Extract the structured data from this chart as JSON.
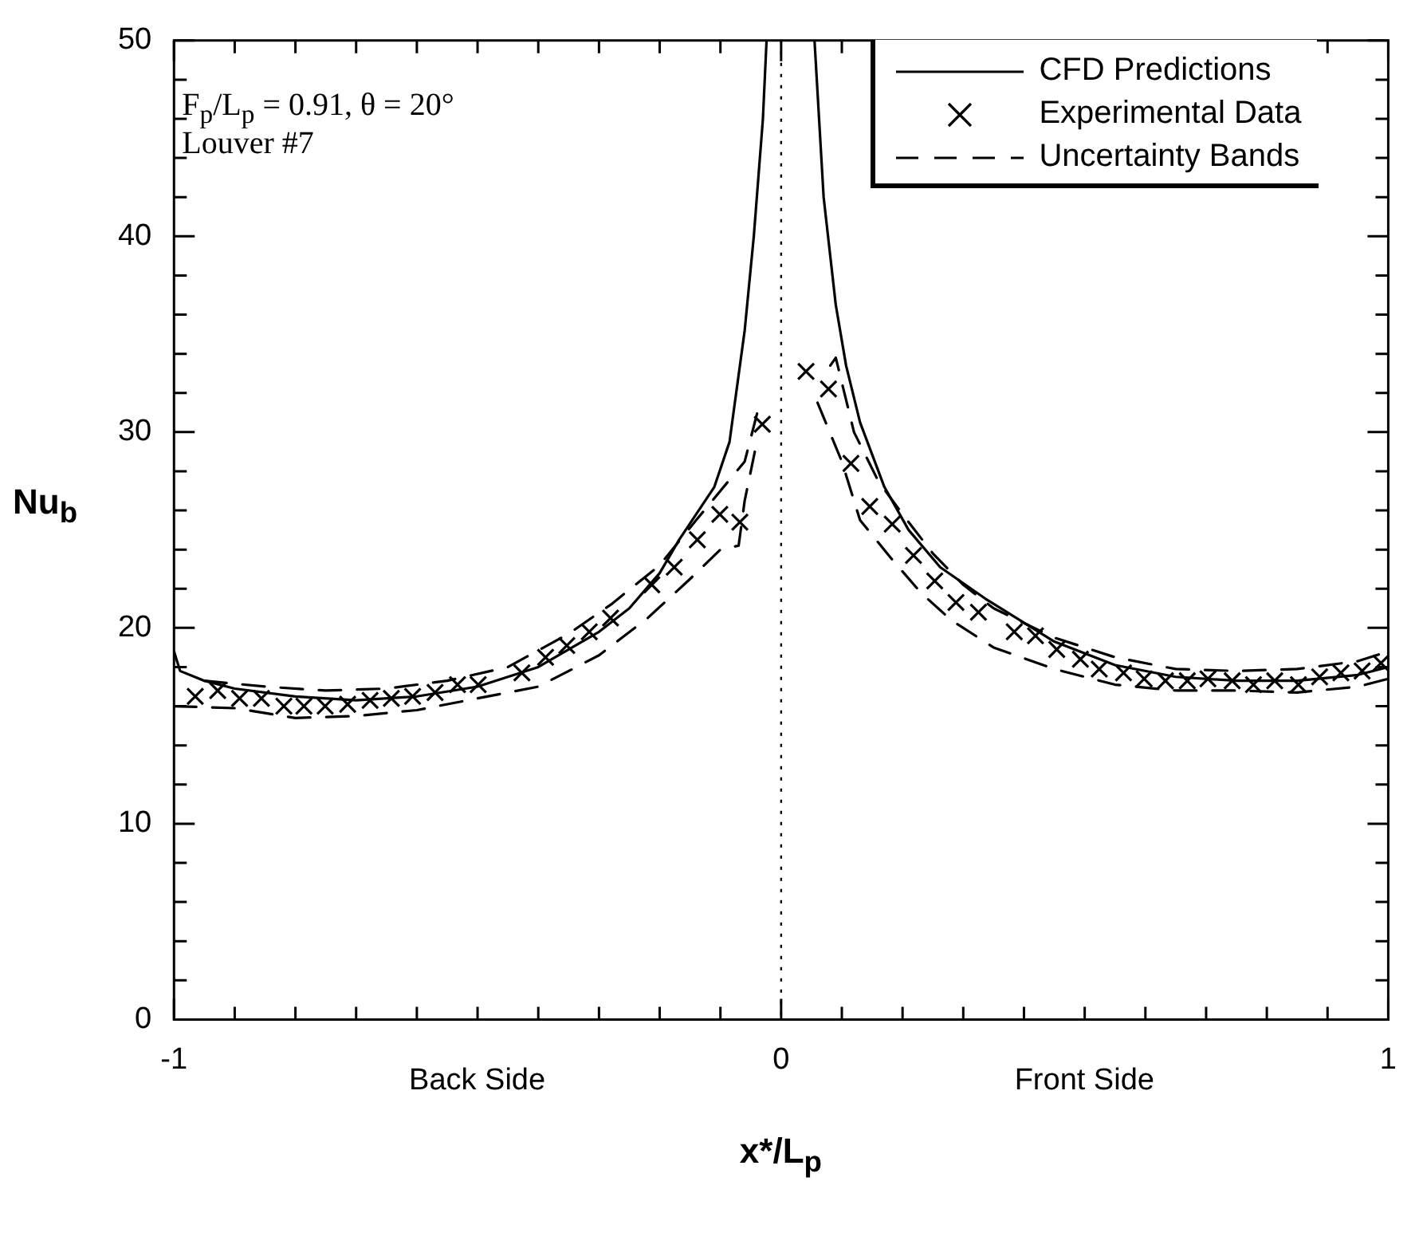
{
  "chart_data": {
    "type": "line",
    "xlabel": "x*/L$_{p}$",
    "ylabel": "Nu$_{b}$",
    "xlim": [
      -1,
      1
    ],
    "ylim": [
      0,
      50
    ],
    "xticks": [
      -1,
      {
        "value": -0.9,
        "label": null
      },
      {
        "value": -0.8,
        "label": null
      },
      {
        "value": -0.7,
        "label": null
      },
      {
        "value": -0.6,
        "label": null
      },
      {
        "value": -0.5,
        "label": null
      },
      {
        "value": -0.4,
        "label": null
      },
      {
        "value": -0.3,
        "label": null
      },
      {
        "value": -0.2,
        "label": null
      },
      {
        "value": -0.1,
        "label": null
      },
      0,
      {
        "value": 0.1,
        "label": null
      },
      {
        "value": 0.2,
        "label": null
      },
      {
        "value": 0.3,
        "label": null
      },
      {
        "value": 0.4,
        "label": null
      },
      {
        "value": 0.5,
        "label": null
      },
      {
        "value": 0.6,
        "label": null
      },
      {
        "value": 0.7,
        "label": null
      },
      {
        "value": 0.8,
        "label": null
      },
      {
        "value": 0.9,
        "label": null
      },
      1
    ],
    "yticks": [
      0,
      {
        "value": 2,
        "label": null
      },
      {
        "value": 4,
        "label": null
      },
      {
        "value": 6,
        "label": null
      },
      {
        "value": 8,
        "label": null
      },
      10,
      {
        "value": 12,
        "label": null
      },
      {
        "value": 14,
        "label": null
      },
      {
        "value": 16,
        "label": null
      },
      {
        "value": 18,
        "label": null
      },
      20,
      {
        "value": 22,
        "label": null
      },
      {
        "value": 24,
        "label": null
      },
      {
        "value": 26,
        "label": null
      },
      {
        "value": 28,
        "label": null
      },
      30,
      {
        "value": 32,
        "label": null
      },
      {
        "value": 34,
        "label": null
      },
      {
        "value": 36,
        "label": null
      },
      {
        "value": 38,
        "label": null
      },
      40,
      {
        "value": 42,
        "label": null
      },
      {
        "value": 44,
        "label": null
      },
      {
        "value": 46,
        "label": null
      },
      {
        "value": 48,
        "label": null
      },
      50
    ],
    "legend": "top right",
    "ref_lines": [
      {
        "axis": "x",
        "value": 0,
        "line_style": "dotted",
        "color": "#000000"
      }
    ],
    "annotations": [
      "F$_{p}$/L$_{p}$ = 0.91, θ = 20°",
      "Louver #7",
      "Back Side",
      "Front Side"
    ],
    "series": [
      {
        "name": "CFD Predictions",
        "color": "#000000",
        "line_style": "solid",
        "x": [
          -1,
          -0.99,
          -0.95,
          -0.9,
          -0.8,
          -0.7,
          -0.6,
          -0.5,
          -0.4,
          -0.3,
          -0.25,
          -0.2,
          -0.168,
          -0.14,
          -0.11,
          -0.085,
          -0.06,
          -0.045,
          -0.03,
          -0.024,
          0,
          0.055,
          0.07,
          0.09,
          0.107,
          0.13,
          0.17,
          0.21,
          0.262,
          0.336,
          0.45,
          0.55,
          0.65,
          0.75,
          0.85,
          0.95,
          1
        ],
        "values": [
          18.8,
          17.8,
          17.3,
          16.9,
          16.5,
          16.3,
          16.5,
          17,
          18,
          19.8,
          21,
          22.8,
          24.5,
          25.8,
          27.2,
          29.5,
          35.2,
          40,
          46,
          50,
          null,
          50,
          42,
          36.5,
          33.4,
          30.5,
          27.2,
          25,
          23.1,
          21.5,
          19.3,
          18.1,
          17.5,
          17.3,
          17.3,
          17.6,
          18
        ]
      },
      {
        "name": "Experimental Data",
        "type": "scatter",
        "color": "#000000",
        "marker": "cross",
        "x": [
          -0.965,
          -0.928,
          -0.892,
          -0.856,
          -0.819,
          -0.786,
          -0.751,
          -0.714,
          -0.677,
          -0.642,
          -0.607,
          -0.57,
          -0.533,
          -0.499,
          -0.427,
          -0.388,
          -0.353,
          -0.316,
          -0.281,
          -0.213,
          -0.176,
          -0.138,
          -0.101,
          -0.068,
          -0.031,
          0.041,
          0.078,
          0.115,
          0.146,
          0.183,
          0.218,
          0.253,
          0.288,
          0.325,
          0.384,
          0.419,
          0.454,
          0.493,
          0.524,
          0.564,
          0.598,
          0.633,
          0.669,
          0.703,
          0.743,
          0.778,
          0.813,
          0.852,
          0.887,
          0.922,
          0.957,
          0.988
        ],
        "values": [
          16.5,
          16.8,
          16.4,
          16.4,
          16,
          16,
          16,
          16.1,
          16.3,
          16.4,
          16.5,
          16.7,
          17.1,
          17.1,
          17.7,
          18.5,
          19.1,
          19.8,
          20.5,
          22.2,
          23.1,
          24.5,
          25.8,
          25.4,
          30.4,
          33.1,
          32.2,
          28.4,
          26.2,
          25.3,
          23.7,
          22.4,
          21.3,
          20.8,
          19.8,
          19.6,
          18.9,
          18.4,
          17.9,
          17.7,
          17.4,
          17.3,
          17.3,
          17.4,
          17.3,
          17.1,
          17.3,
          17.1,
          17.5,
          17.7,
          17.8,
          18.2
        ]
      },
      {
        "name": "Uncertainty Bands",
        "color": "#000000",
        "line_style": "dashed",
        "x": [
          -0.95,
          -0.85,
          -0.75,
          -0.65,
          -0.55,
          -0.45,
          -0.35,
          -0.28,
          -0.2,
          -0.14,
          -0.1,
          -0.06,
          -0.035,
          0,
          0.081,
          0.09,
          0.12,
          0.16,
          0.2,
          0.25,
          0.3,
          0.35,
          0.45,
          0.55,
          0.65,
          0.75,
          0.85,
          0.95,
          1
        ],
        "values": [
          17.3,
          17,
          16.8,
          16.9,
          17.3,
          18,
          19.7,
          21.2,
          23.2,
          25.5,
          27,
          28.5,
          31.5,
          null,
          33.4,
          33.8,
          30,
          27.5,
          25.8,
          23.8,
          22.2,
          21,
          19.5,
          18.5,
          17.9,
          17.8,
          17.9,
          18.3,
          18.8
        ]
      },
      {
        "color": "#000000",
        "line_style": "dashed",
        "x": [
          -1,
          -0.9,
          -0.8,
          -0.7,
          -0.6,
          -0.5,
          -0.4,
          -0.3,
          -0.22,
          -0.15,
          -0.1,
          -0.07,
          -0.06,
          -0.04,
          0,
          0.06,
          0.1,
          0.13,
          0.18,
          0.23,
          0.28,
          0.35,
          0.45,
          0.55,
          0.65,
          0.75,
          0.85,
          0.95,
          1
        ],
        "values": [
          16,
          15.9,
          15.4,
          15.5,
          15.8,
          16.4,
          17,
          18.6,
          20.5,
          22.5,
          24,
          24.2,
          26.5,
          29.5,
          null,
          31.5,
          28.5,
          25.5,
          23.6,
          21.8,
          20.4,
          19,
          17.9,
          17.1,
          16.8,
          16.8,
          16.7,
          17,
          17.4
        ]
      }
    ]
  }
}
